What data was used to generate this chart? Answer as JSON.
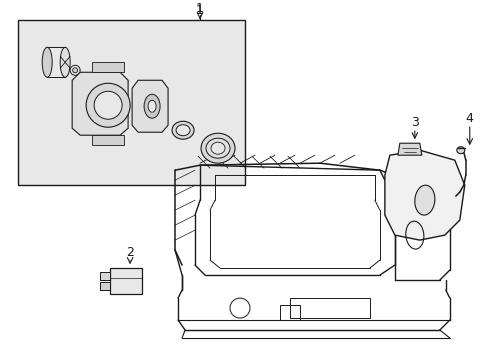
{
  "background_color": "#ffffff",
  "line_color": "#1a1a1a",
  "box_bg_color": "#e8e8e8",
  "label_1": "1",
  "label_2": "2",
  "label_3": "3",
  "label_4": "4",
  "fig_width": 4.89,
  "fig_height": 3.6,
  "dpi": 100
}
